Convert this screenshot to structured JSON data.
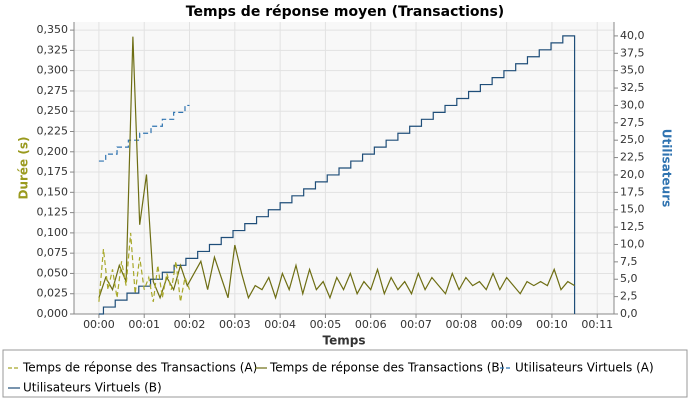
{
  "chart_data": {
    "type": "line",
    "title": "Temps de réponse moyen (Transactions)",
    "x_label": "Temps",
    "y_label": "Durée (s)",
    "y2_label": "Utilisateurs",
    "xlim": [
      -0.55,
      11.37
    ],
    "xticks": [
      {
        "value": 0,
        "label": "00:00"
      },
      {
        "value": 1,
        "label": "00:01"
      },
      {
        "value": 2,
        "label": "00:02"
      },
      {
        "value": 3,
        "label": "00:03"
      },
      {
        "value": 4,
        "label": "00:04"
      },
      {
        "value": 5,
        "label": "00:05"
      },
      {
        "value": 6,
        "label": "00:06"
      },
      {
        "value": 7,
        "label": "00:07"
      },
      {
        "value": 8,
        "label": "00:08"
      },
      {
        "value": 9,
        "label": "00:09"
      },
      {
        "value": 10,
        "label": "00:10"
      },
      {
        "value": 11,
        "label": "00:11"
      }
    ],
    "ylim": [
      0,
      0.36
    ],
    "yticks": [
      {
        "value": 0,
        "label": "0,000"
      },
      {
        "value": 0.025,
        "label": "0,025"
      },
      {
        "value": 0.05,
        "label": "0,050"
      },
      {
        "value": 0.075,
        "label": "0,075"
      },
      {
        "value": 0.1,
        "label": "0,100"
      },
      {
        "value": 0.125,
        "label": "0,125"
      },
      {
        "value": 0.15,
        "label": "0,150"
      },
      {
        "value": 0.175,
        "label": "0,175"
      },
      {
        "value": 0.2,
        "label": "0,200"
      },
      {
        "value": 0.225,
        "label": "0,225"
      },
      {
        "value": 0.25,
        "label": "0,250"
      },
      {
        "value": 0.275,
        "label": "0,275"
      },
      {
        "value": 0.3,
        "label": "0,300"
      },
      {
        "value": 0.325,
        "label": "0,325"
      },
      {
        "value": 0.35,
        "label": "0,350"
      }
    ],
    "y2lim": [
      0,
      42
    ],
    "y2ticks": [
      {
        "value": 0,
        "label": "0,0"
      },
      {
        "value": 2.5,
        "label": "2,5"
      },
      {
        "value": 5,
        "label": "5,0"
      },
      {
        "value": 7.5,
        "label": "7,5"
      },
      {
        "value": 10,
        "label": "10,0"
      },
      {
        "value": 12.5,
        "label": "12,5"
      },
      {
        "value": 15,
        "label": "15,0"
      },
      {
        "value": 17.5,
        "label": "17,5"
      },
      {
        "value": 20,
        "label": "20,0"
      },
      {
        "value": 22.5,
        "label": "22,5"
      },
      {
        "value": 25,
        "label": "25,0"
      },
      {
        "value": 27.5,
        "label": "27,5"
      },
      {
        "value": 30,
        "label": "30,0"
      },
      {
        "value": 32.5,
        "label": "32,5"
      },
      {
        "value": 35,
        "label": "35,0"
      },
      {
        "value": 37.5,
        "label": "37,5"
      },
      {
        "value": 40,
        "label": "40,0"
      }
    ],
    "grid": true,
    "legend": "bottom",
    "series": [
      {
        "name": "Temps de réponse des Transactions (A)",
        "color": "#a8a82a",
        "dashed": true,
        "step": false,
        "x": [
          0,
          0.1,
          0.2,
          0.3,
          0.4,
          0.5,
          0.6,
          0.7,
          0.8,
          0.9,
          1,
          1.1,
          1.2,
          1.3,
          1.4,
          1.5,
          1.6,
          1.7,
          1.8,
          1.9,
          2
        ],
        "values": [
          0.015,
          0.08,
          0.03,
          0.055,
          0.02,
          0.065,
          0.035,
          0.1,
          0.025,
          0.07,
          0.03,
          0.045,
          0.015,
          0.06,
          0.02,
          0.05,
          0.03,
          0.065,
          0.015,
          0.045,
          0.03
        ]
      },
      {
        "name": "Temps de réponse des Transactions (B)",
        "color": "#6e6e14",
        "dashed": false,
        "step": false,
        "x": [
          0,
          0.15,
          0.3,
          0.45,
          0.6,
          0.75,
          0.9,
          1.05,
          1.2,
          1.35,
          1.5,
          1.65,
          1.8,
          1.95,
          2.1,
          2.25,
          2.4,
          2.55,
          2.7,
          2.85,
          3,
          3.15,
          3.3,
          3.45,
          3.6,
          3.75,
          3.9,
          4.05,
          4.2,
          4.35,
          4.5,
          4.65,
          4.8,
          4.95,
          5.1,
          5.25,
          5.4,
          5.55,
          5.7,
          5.85,
          6,
          6.15,
          6.3,
          6.45,
          6.6,
          6.75,
          6.9,
          7.05,
          7.2,
          7.35,
          7.5,
          7.65,
          7.8,
          7.95,
          8.1,
          8.25,
          8.4,
          8.55,
          8.7,
          8.85,
          9,
          9.15,
          9.3,
          9.45,
          9.6,
          9.75,
          9.9,
          10.05,
          10.2,
          10.35,
          10.5
        ],
        "values": [
          0.02,
          0.045,
          0.03,
          0.06,
          0.04,
          0.342,
          0.11,
          0.172,
          0.04,
          0.02,
          0.045,
          0.03,
          0.06,
          0.035,
          0.05,
          0.065,
          0.03,
          0.07,
          0.045,
          0.02,
          0.085,
          0.05,
          0.02,
          0.035,
          0.03,
          0.045,
          0.02,
          0.05,
          0.03,
          0.06,
          0.025,
          0.055,
          0.03,
          0.04,
          0.02,
          0.045,
          0.03,
          0.05,
          0.025,
          0.04,
          0.03,
          0.055,
          0.025,
          0.045,
          0.03,
          0.04,
          0.025,
          0.05,
          0.03,
          0.045,
          0.035,
          0.025,
          0.05,
          0.03,
          0.045,
          0.035,
          0.04,
          0.03,
          0.05,
          0.03,
          0.045,
          0.035,
          0.025,
          0.04,
          0.035,
          0.04,
          0.035,
          0.055,
          0.03,
          0.04,
          0.035
        ]
      },
      {
        "name": "Utilisateurs Virtuels (A)",
        "color": "#2f73b0",
        "dashed": true,
        "step": true,
        "axis": "y2",
        "x": [
          0,
          0.15,
          0.4,
          0.65,
          0.9,
          1.15,
          1.4,
          1.65,
          1.9,
          2
        ],
        "values": [
          22,
          23,
          24,
          25,
          26,
          27,
          28,
          29,
          30,
          30
        ]
      },
      {
        "name": "Utilisateurs Virtuels (B)",
        "color": "#1f4e79",
        "dashed": false,
        "step": true,
        "axis": "y2",
        "x": [
          0,
          0.1,
          0.36,
          0.62,
          0.88,
          1.14,
          1.4,
          1.66,
          1.92,
          2.18,
          2.44,
          2.7,
          2.96,
          3.22,
          3.48,
          3.74,
          4,
          4.26,
          4.52,
          4.78,
          5.04,
          5.3,
          5.56,
          5.82,
          6.08,
          6.34,
          6.6,
          6.86,
          7.12,
          7.38,
          7.64,
          7.9,
          8.16,
          8.42,
          8.68,
          8.94,
          9.2,
          9.46,
          9.72,
          9.98,
          10.24,
          10.5
        ],
        "values": [
          0,
          1,
          2,
          3,
          4,
          5,
          6,
          7,
          8,
          9,
          10,
          11,
          12,
          13,
          14,
          15,
          16,
          17,
          18,
          19,
          20,
          21,
          22,
          23,
          24,
          25,
          26,
          27,
          28,
          29,
          30,
          31,
          32,
          33,
          34,
          35,
          36,
          37,
          38,
          39,
          40,
          0
        ]
      }
    ]
  }
}
